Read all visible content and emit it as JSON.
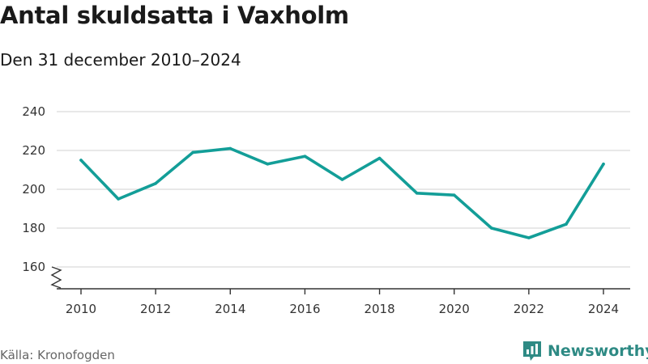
{
  "header": {
    "title": "Antal skuldsatta i Vaxholm",
    "subtitle": "Den 31 december 2010–2024"
  },
  "footer": {
    "source": "Källa: Kronofogden",
    "brand": "Newsworthy",
    "brand_icon": "newsworthy-logo-icon"
  },
  "colors": {
    "line": "#139e98",
    "grid": "#d9d9d9",
    "axis": "#333333",
    "brand": "#2e8a84"
  },
  "chart_data": {
    "type": "line",
    "x": [
      2010,
      2011,
      2012,
      2013,
      2014,
      2015,
      2016,
      2017,
      2018,
      2019,
      2020,
      2021,
      2022,
      2023,
      2024
    ],
    "series": [
      {
        "values": [
          215,
          195,
          203,
          219,
          221,
          213,
          217,
          205,
          216,
          198,
          197,
          180,
          175,
          182,
          213
        ]
      }
    ],
    "y_ticks": [
      160,
      180,
      200,
      220,
      240
    ],
    "x_ticks": [
      2010,
      2012,
      2014,
      2016,
      2018,
      2020,
      2022,
      2024
    ],
    "ylim": [
      160,
      240
    ],
    "xlim": [
      2010,
      2024
    ],
    "y_axis_break": true,
    "grid": "horizontal",
    "xlabel": "",
    "ylabel": ""
  }
}
